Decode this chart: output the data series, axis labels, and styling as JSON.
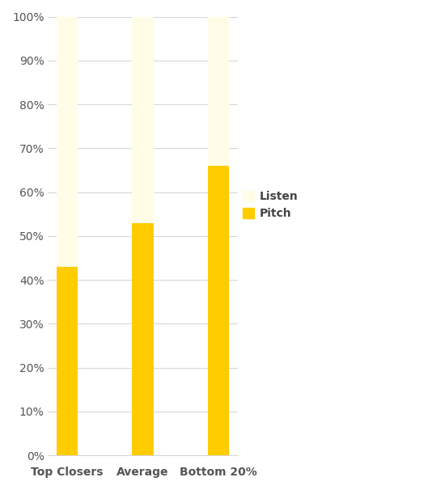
{
  "categories": [
    "Top Closers",
    "Average",
    "Bottom 20%"
  ],
  "pitch_values": [
    43,
    53,
    66
  ],
  "listen_values": [
    57,
    47,
    34
  ],
  "pitch_color": "#FFCC00",
  "listen_color": "#FFFDE7",
  "background_color": "#FFFFFF",
  "legend_labels": [
    "Listen",
    "Pitch"
  ],
  "ylim": [
    0,
    100
  ],
  "ytick_labels": [
    "0%",
    "10%",
    "20%",
    "30%",
    "40%",
    "50%",
    "60%",
    "70%",
    "80%",
    "90%",
    "100%"
  ],
  "ytick_values": [
    0,
    10,
    20,
    30,
    40,
    50,
    60,
    70,
    80,
    90,
    100
  ],
  "bar_width": 0.28,
  "grid_color": "#D3D3D3",
  "label_color": "#555555",
  "legend_fontsize": 10,
  "tick_fontsize": 10,
  "figsize": [
    5.5,
    6.06
  ],
  "dpi": 100
}
